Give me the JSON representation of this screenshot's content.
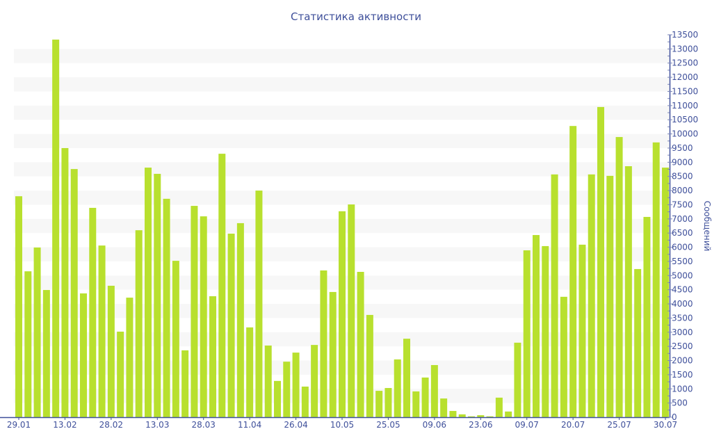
{
  "chart_data": {
    "type": "bar",
    "title": "Статистика активности",
    "ylabel": "Сообщений",
    "xlabel": "",
    "ylim": [
      0,
      13500
    ],
    "y_ticks_step": 500,
    "y_axis_side": "right",
    "grid": "alternating horizontal bands",
    "bar_color": "#b8e02e",
    "axis_color": "#3e4f9a",
    "x_tick_labels": [
      "29.01",
      "13.02",
      "28.02",
      "13.03",
      "28.03",
      "11.04",
      "26.04",
      "10.05",
      "25.05",
      "09.06",
      "23.06",
      "09.07",
      "20.07",
      "25.07",
      "30.07"
    ],
    "x_tick_every": 5,
    "values": [
      7800,
      5150,
      5990,
      4490,
      13330,
      9500,
      8760,
      4370,
      7390,
      6060,
      4640,
      3020,
      4220,
      6600,
      8810,
      8590,
      7710,
      5520,
      2360,
      7460,
      7090,
      4270,
      9300,
      6480,
      6850,
      3170,
      8000,
      2530,
      1280,
      1960,
      2280,
      1080,
      2550,
      5180,
      4420,
      7270,
      7510,
      5130,
      3610,
      930,
      1030,
      2040,
      2770,
      910,
      1400,
      1840,
      660,
      220,
      100,
      30,
      70,
      30,
      690,
      200,
      2630,
      5890,
      6430,
      6040,
      8570,
      4250,
      10280,
      6090,
      8570,
      10950,
      8520,
      9890,
      8860,
      5230,
      7070,
      9700,
      8810
    ]
  }
}
